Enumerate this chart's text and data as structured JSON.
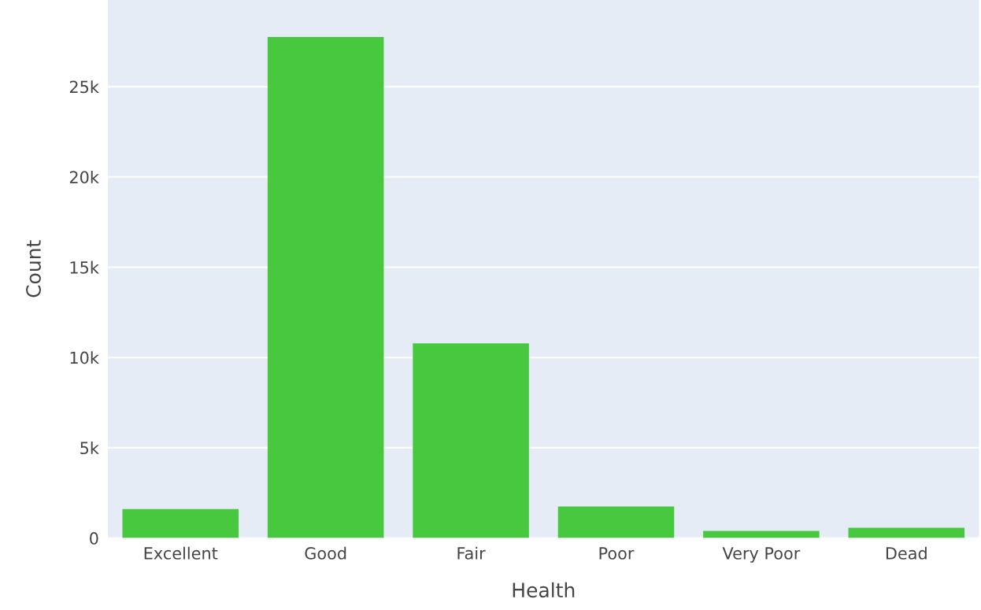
{
  "chart_data": {
    "type": "bar",
    "xlabel": "Health",
    "ylabel": "Count",
    "categories": [
      "Excellent",
      "Good",
      "Fair",
      "Poor",
      "Very Poor",
      "Dead"
    ],
    "values": [
      1600,
      27750,
      10780,
      1750,
      390,
      570
    ],
    "color": "#47c83e",
    "ylim": [
      0,
      29800
    ],
    "yticks": [
      0,
      {
        "value": 5000,
        "label": "5k"
      },
      {
        "value": 10000,
        "label": "10k"
      },
      {
        "value": 15000,
        "label": "15k"
      },
      {
        "value": 20000,
        "label": "20k"
      },
      {
        "value": 25000,
        "label": "25k"
      }
    ],
    "grid": "y"
  }
}
